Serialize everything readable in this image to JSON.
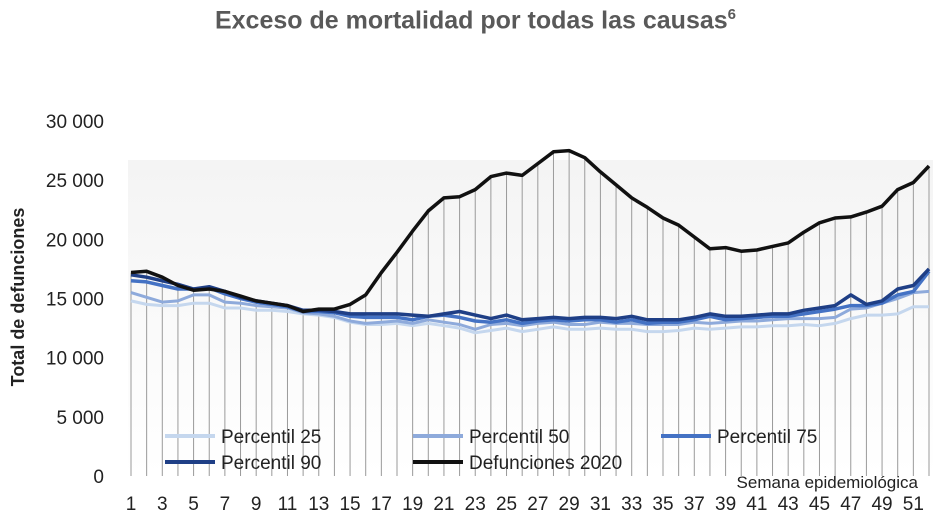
{
  "chart_data": {
    "type": "line",
    "title": "Exceso de mortalidad por todas las causas",
    "title_superscript": "6",
    "xlabel": "Semana epidemiológica",
    "ylabel": "Total de defunciones",
    "xlim": [
      1,
      52
    ],
    "ylim": [
      0,
      30000
    ],
    "yticks": [
      "0",
      "5 000",
      "10 000",
      "15 000",
      "20 000",
      "25 000",
      "30 000"
    ],
    "xticks": [
      "1",
      "3",
      "5",
      "7",
      "9",
      "11",
      "13",
      "15",
      "17",
      "19",
      "21",
      "23",
      "25",
      "27",
      "29",
      "31",
      "33",
      "35",
      "37",
      "39",
      "41",
      "43",
      "45",
      "47",
      "49",
      "51"
    ],
    "grid": "vertical lines per week",
    "legend_position": "bottom-left inside plot",
    "x": [
      1,
      2,
      3,
      4,
      5,
      6,
      7,
      8,
      9,
      10,
      11,
      12,
      13,
      14,
      15,
      16,
      17,
      18,
      19,
      20,
      21,
      22,
      23,
      24,
      25,
      26,
      27,
      28,
      29,
      30,
      31,
      32,
      33,
      34,
      35,
      36,
      37,
      38,
      39,
      40,
      41,
      42,
      43,
      44,
      45,
      46,
      47,
      48,
      49,
      50,
      51,
      52
    ],
    "series": [
      {
        "name": "Percentil 25",
        "color": "#c5d7ee",
        "values": [
          14800,
          14500,
          14400,
          14400,
          14600,
          14600,
          14200,
          14200,
          14000,
          14000,
          13900,
          13700,
          13600,
          13400,
          13000,
          12800,
          12800,
          12900,
          12700,
          12900,
          12700,
          12500,
          12100,
          12300,
          12500,
          12200,
          12400,
          12600,
          12400,
          12400,
          12500,
          12400,
          12400,
          12200,
          12200,
          12300,
          12500,
          12400,
          12500,
          12600,
          12600,
          12700,
          12700,
          12800,
          12700,
          12900,
          13300,
          13600,
          13600,
          13700,
          14300,
          14300
        ]
      },
      {
        "name": "Percentil 50",
        "color": "#8eaadb",
        "values": [
          15500,
          15100,
          14700,
          14800,
          15300,
          15300,
          14700,
          14600,
          14400,
          14300,
          14200,
          13800,
          13700,
          13500,
          13100,
          12900,
          13000,
          13100,
          12900,
          13200,
          13000,
          12800,
          12400,
          12800,
          12900,
          12700,
          12900,
          13000,
          12800,
          12800,
          13000,
          12900,
          12900,
          12800,
          12800,
          12800,
          13000,
          12900,
          13000,
          13100,
          13100,
          13200,
          13300,
          13300,
          13300,
          13400,
          14100,
          14200,
          14600,
          15000,
          15500,
          15600
        ]
      },
      {
        "name": "Percentil 75",
        "color": "#4472c4",
        "values": [
          16500,
          16400,
          16100,
          15800,
          15800,
          15900,
          15400,
          15000,
          14700,
          14500,
          14300,
          13900,
          13900,
          13800,
          13500,
          13400,
          13400,
          13400,
          13200,
          13500,
          13600,
          13400,
          13100,
          13000,
          13200,
          12900,
          13100,
          13200,
          13100,
          13200,
          13200,
          13000,
          13200,
          12900,
          13000,
          13000,
          13200,
          13500,
          13200,
          13300,
          13400,
          13500,
          13500,
          13700,
          13900,
          14100,
          14400,
          14400,
          14600,
          15300,
          15600,
          17300
        ]
      },
      {
        "name": "Percentil 90",
        "color": "#1f3f86",
        "values": [
          17000,
          16800,
          16500,
          16200,
          15800,
          16000,
          15600,
          15100,
          14800,
          14600,
          14400,
          14000,
          14000,
          13900,
          13700,
          13700,
          13700,
          13700,
          13600,
          13500,
          13700,
          13900,
          13600,
          13300,
          13600,
          13200,
          13300,
          13400,
          13300,
          13400,
          13400,
          13300,
          13500,
          13200,
          13200,
          13200,
          13400,
          13700,
          13500,
          13500,
          13600,
          13700,
          13700,
          14000,
          14200,
          14400,
          15300,
          14500,
          14800,
          15800,
          16100,
          17500
        ]
      },
      {
        "name": "Defunciones 2020",
        "color": "#111111",
        "values": [
          17200,
          17300,
          16800,
          16100,
          15700,
          15800,
          15600,
          15200,
          14800,
          14600,
          14400,
          13900,
          14100,
          14100,
          14500,
          15300,
          17200,
          18900,
          20700,
          22400,
          23500,
          23600,
          24200,
          25300,
          25600,
          25400,
          26400,
          27400,
          27500,
          26900,
          25700,
          24600,
          23500,
          22700,
          21800,
          21200,
          20200,
          19200,
          19300,
          19000,
          19100,
          19400,
          19700,
          20600,
          21400,
          21800,
          21900,
          22300,
          22800,
          24200,
          24800,
          26200
        ]
      }
    ]
  }
}
